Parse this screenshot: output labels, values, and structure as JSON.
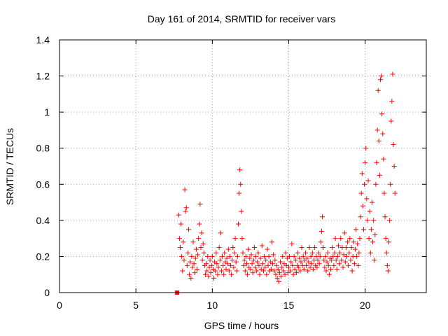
{
  "chart_data": {
    "type": "scatter",
    "title": "Day 161 of 2014, SRMTID for receiver vars",
    "xlabel": "GPS time / hours",
    "ylabel": "SRMTID / TECUs",
    "xlim": [
      0,
      24
    ],
    "ylim": [
      0,
      1.4
    ],
    "xticks": [
      0,
      5,
      10,
      15,
      20
    ],
    "yticks": [
      0,
      0.2,
      0.4,
      0.6,
      0.8,
      1,
      1.2,
      1.4
    ],
    "xtick_labels": [
      "0",
      "5",
      "10",
      "15",
      "20"
    ],
    "ytick_labels": [
      "0",
      "0.2",
      "0.4",
      "0.6",
      "0.8",
      "1",
      "1.2",
      "1.4"
    ],
    "grid": true,
    "marker": "+",
    "series_color": "#ff0000",
    "zero_marker": {
      "x": 7.7,
      "y": 0,
      "marker": "square"
    },
    "series": [
      {
        "name": "SRMTID",
        "points": [
          [
            7.8,
            0.43
          ],
          [
            7.85,
            0.3
          ],
          [
            7.9,
            0.25
          ],
          [
            7.95,
            0.38
          ],
          [
            8.0,
            0.2
          ],
          [
            8.05,
            0.12
          ],
          [
            8.1,
            0.28
          ],
          [
            8.15,
            0.18
          ],
          [
            8.2,
            0.57
          ],
          [
            8.25,
            0.45
          ],
          [
            8.3,
            0.47
          ],
          [
            8.35,
            0.15
          ],
          [
            8.4,
            0.22
          ],
          [
            8.45,
            0.35
          ],
          [
            8.5,
            0.1
          ],
          [
            8.55,
            0.17
          ],
          [
            8.6,
            0.08
          ],
          [
            8.65,
            0.2
          ],
          [
            8.7,
            0.14
          ],
          [
            8.75,
            0.28
          ],
          [
            8.8,
            0.16
          ],
          [
            8.85,
            0.11
          ],
          [
            8.9,
            0.19
          ],
          [
            8.95,
            0.24
          ],
          [
            9.0,
            0.13
          ],
          [
            9.05,
            0.21
          ],
          [
            9.1,
            0.3
          ],
          [
            9.15,
            0.38
          ],
          [
            9.2,
            0.49
          ],
          [
            9.25,
            0.25
          ],
          [
            9.3,
            0.33
          ],
          [
            9.35,
            0.18
          ],
          [
            9.4,
            0.27
          ],
          [
            9.45,
            0.22
          ],
          [
            9.5,
            0.15
          ],
          [
            9.55,
            0.1
          ],
          [
            9.6,
            0.16
          ],
          [
            9.65,
            0.12
          ],
          [
            9.7,
            0.2
          ],
          [
            9.75,
            0.09
          ],
          [
            9.8,
            0.14
          ],
          [
            9.85,
            0.18
          ],
          [
            9.9,
            0.11
          ],
          [
            9.95,
            0.15
          ],
          [
            10.0,
            0.2
          ],
          [
            10.05,
            0.13
          ],
          [
            10.1,
            0.08
          ],
          [
            10.15,
            0.17
          ],
          [
            10.2,
            0.12
          ],
          [
            10.25,
            0.22
          ],
          [
            10.3,
            0.16
          ],
          [
            10.35,
            0.1
          ],
          [
            10.4,
            0.14
          ],
          [
            10.45,
            0.25
          ],
          [
            10.5,
            0.18
          ],
          [
            10.55,
            0.33
          ],
          [
            10.6,
            0.12
          ],
          [
            10.65,
            0.2
          ],
          [
            10.7,
            0.15
          ],
          [
            10.75,
            0.1
          ],
          [
            10.8,
            0.22
          ],
          [
            10.85,
            0.17
          ],
          [
            10.9,
            0.13
          ],
          [
            10.95,
            0.19
          ],
          [
            11.0,
            0.16
          ],
          [
            11.05,
            0.24
          ],
          [
            11.1,
            0.12
          ],
          [
            11.15,
            0.2
          ],
          [
            11.2,
            0.15
          ],
          [
            11.25,
            0.1
          ],
          [
            11.3,
            0.18
          ],
          [
            11.35,
            0.25
          ],
          [
            11.4,
            0.14
          ],
          [
            11.45,
            0.22
          ],
          [
            11.5,
            0.3
          ],
          [
            11.55,
            0.17
          ],
          [
            11.6,
            0.12
          ],
          [
            11.65,
            0.2
          ],
          [
            11.7,
            0.38
          ],
          [
            11.75,
            0.55
          ],
          [
            11.8,
            0.68
          ],
          [
            11.85,
            0.6
          ],
          [
            11.9,
            0.45
          ],
          [
            11.95,
            0.3
          ],
          [
            12.0,
            0.22
          ],
          [
            12.05,
            0.15
          ],
          [
            12.1,
            0.18
          ],
          [
            12.15,
            0.12
          ],
          [
            12.2,
            0.2
          ],
          [
            12.25,
            0.16
          ],
          [
            12.3,
            0.1
          ],
          [
            12.35,
            0.24
          ],
          [
            12.4,
            0.14
          ],
          [
            12.45,
            0.19
          ],
          [
            12.5,
            0.13
          ],
          [
            12.55,
            0.21
          ],
          [
            12.6,
            0.16
          ],
          [
            12.65,
            0.11
          ],
          [
            12.7,
            0.18
          ],
          [
            12.75,
            0.25
          ],
          [
            12.8,
            0.14
          ],
          [
            12.85,
            0.2
          ],
          [
            12.9,
            0.12
          ],
          [
            12.95,
            0.17
          ],
          [
            13.0,
            0.22
          ],
          [
            13.05,
            0.15
          ],
          [
            13.1,
            0.1
          ],
          [
            13.15,
            0.19
          ],
          [
            13.2,
            0.13
          ],
          [
            13.25,
            0.26
          ],
          [
            13.3,
            0.16
          ],
          [
            13.35,
            0.12
          ],
          [
            13.4,
            0.2
          ],
          [
            13.45,
            0.14
          ],
          [
            13.5,
            0.18
          ],
          [
            13.55,
            0.1
          ],
          [
            13.6,
            0.24
          ],
          [
            13.65,
            0.15
          ],
          [
            13.7,
            0.2
          ],
          [
            13.75,
            0.12
          ],
          [
            13.8,
            0.17
          ],
          [
            13.85,
            0.13
          ],
          [
            13.9,
            0.28
          ],
          [
            13.95,
            0.16
          ],
          [
            14.0,
            0.21
          ],
          [
            14.05,
            0.12
          ],
          [
            14.1,
            0.18
          ],
          [
            14.15,
            0.1
          ],
          [
            14.2,
            0.15
          ],
          [
            14.25,
            0.08
          ],
          [
            14.3,
            0.13
          ],
          [
            14.35,
            0.06
          ],
          [
            14.4,
            0.11
          ],
          [
            14.45,
            0.17
          ],
          [
            14.5,
            0.09
          ],
          [
            14.55,
            0.14
          ],
          [
            14.6,
            0.2
          ],
          [
            14.65,
            0.12
          ],
          [
            14.7,
            0.16
          ],
          [
            14.75,
            0.1
          ],
          [
            14.8,
            0.22
          ],
          [
            14.85,
            0.15
          ],
          [
            14.9,
            0.19
          ],
          [
            14.95,
            0.11
          ],
          [
            15.0,
            0.14
          ],
          [
            15.05,
            0.2
          ],
          [
            15.1,
            0.12
          ],
          [
            15.15,
            0.17
          ],
          [
            15.2,
            0.27
          ],
          [
            15.25,
            0.15
          ],
          [
            15.3,
            0.1
          ],
          [
            15.35,
            0.2
          ],
          [
            15.4,
            0.13
          ],
          [
            15.45,
            0.18
          ],
          [
            15.5,
            0.11
          ],
          [
            15.55,
            0.15
          ],
          [
            15.6,
            0.22
          ],
          [
            15.65,
            0.14
          ],
          [
            15.7,
            0.19
          ],
          [
            15.75,
            0.12
          ],
          [
            15.8,
            0.17
          ],
          [
            15.85,
            0.25
          ],
          [
            15.9,
            0.15
          ],
          [
            15.95,
            0.2
          ],
          [
            16.0,
            0.13
          ],
          [
            16.05,
            0.18
          ],
          [
            16.1,
            0.22
          ],
          [
            16.15,
            0.15
          ],
          [
            16.2,
            0.19
          ],
          [
            16.25,
            0.12
          ],
          [
            16.3,
            0.17
          ],
          [
            16.35,
            0.25
          ],
          [
            16.4,
            0.14
          ],
          [
            16.45,
            0.2
          ],
          [
            16.5,
            0.16
          ],
          [
            16.55,
            0.22
          ],
          [
            16.6,
            0.13
          ],
          [
            16.65,
            0.18
          ],
          [
            16.7,
            0.25
          ],
          [
            16.75,
            0.15
          ],
          [
            16.8,
            0.2
          ],
          [
            16.85,
            0.14
          ],
          [
            16.9,
            0.18
          ],
          [
            16.95,
            0.22
          ],
          [
            17.0,
            0.16
          ],
          [
            17.05,
            0.2
          ],
          [
            17.1,
            0.28
          ],
          [
            17.15,
            0.34
          ],
          [
            17.2,
            0.42
          ],
          [
            17.25,
            0.25
          ],
          [
            17.3,
            0.18
          ],
          [
            17.35,
            0.14
          ],
          [
            17.4,
            0.2
          ],
          [
            17.45,
            0.12
          ],
          [
            17.5,
            0.17
          ],
          [
            17.55,
            0.22
          ],
          [
            17.6,
            0.15
          ],
          [
            17.65,
            0.1
          ],
          [
            17.7,
            0.19
          ],
          [
            17.75,
            0.13
          ],
          [
            17.8,
            0.18
          ],
          [
            17.85,
            0.25
          ],
          [
            17.9,
            0.2
          ],
          [
            17.95,
            0.15
          ],
          [
            18.0,
            0.22
          ],
          [
            18.05,
            0.3
          ],
          [
            18.1,
            0.18
          ],
          [
            18.15,
            0.13
          ],
          [
            18.2,
            0.2
          ],
          [
            18.25,
            0.26
          ],
          [
            18.3,
            0.16
          ],
          [
            18.35,
            0.22
          ],
          [
            18.4,
            0.3
          ],
          [
            18.45,
            0.18
          ],
          [
            18.5,
            0.25
          ],
          [
            18.55,
            0.14
          ],
          [
            18.6,
            0.21
          ],
          [
            18.65,
            0.33
          ],
          [
            18.7,
            0.17
          ],
          [
            18.75,
            0.25
          ],
          [
            18.8,
            0.2
          ],
          [
            18.85,
            0.28
          ],
          [
            18.9,
            0.15
          ],
          [
            18.95,
            0.22
          ],
          [
            19.0,
            0.3
          ],
          [
            19.05,
            0.18
          ],
          [
            19.1,
            0.25
          ],
          [
            19.15,
            0.12
          ],
          [
            19.2,
            0.2
          ],
          [
            19.25,
            0.28
          ],
          [
            19.3,
            0.16
          ],
          [
            19.35,
            0.24
          ],
          [
            19.4,
            0.35
          ],
          [
            19.45,
            0.2
          ],
          [
            19.5,
            0.27
          ],
          [
            19.55,
            0.15
          ],
          [
            19.6,
            0.22
          ],
          [
            19.65,
            0.3
          ],
          [
            19.7,
            0.42
          ],
          [
            19.75,
            0.55
          ],
          [
            19.8,
            0.66
          ],
          [
            19.85,
            0.48
          ],
          [
            19.9,
            0.35
          ],
          [
            19.95,
            0.6
          ],
          [
            20.0,
            0.72
          ],
          [
            20.05,
            0.8
          ],
          [
            20.1,
            0.52
          ],
          [
            20.15,
            0.4
          ],
          [
            20.2,
            0.62
          ],
          [
            20.25,
            0.3
          ],
          [
            20.3,
            0.45
          ],
          [
            20.35,
            0.22
          ],
          [
            20.4,
            0.35
          ],
          [
            20.45,
            0.5
          ],
          [
            20.5,
            0.28
          ],
          [
            20.55,
            0.4
          ],
          [
            20.6,
            0.18
          ],
          [
            20.65,
            0.32
          ],
          [
            20.7,
            0.6
          ],
          [
            20.75,
            0.72
          ],
          [
            20.8,
            0.9
          ],
          [
            20.85,
            1.12
          ],
          [
            20.9,
            0.84
          ],
          [
            20.95,
            0.65
          ],
          [
            21.0,
            1.18
          ],
          [
            21.05,
            1.2
          ],
          [
            21.1,
            0.99
          ],
          [
            21.15,
            0.88
          ],
          [
            21.2,
            0.74
          ],
          [
            21.25,
            0.55
          ],
          [
            21.3,
            0.42
          ],
          [
            21.35,
            0.3
          ],
          [
            21.4,
            0.22
          ],
          [
            21.45,
            0.15
          ],
          [
            21.5,
            0.12
          ],
          [
            21.55,
            0.28
          ],
          [
            21.6,
            0.4
          ],
          [
            21.65,
            0.6
          ],
          [
            21.7,
            0.95
          ],
          [
            21.75,
            1.06
          ],
          [
            21.8,
            1.21
          ],
          [
            21.85,
            0.82
          ],
          [
            21.9,
            0.7
          ],
          [
            21.95,
            0.55
          ]
        ]
      }
    ]
  }
}
